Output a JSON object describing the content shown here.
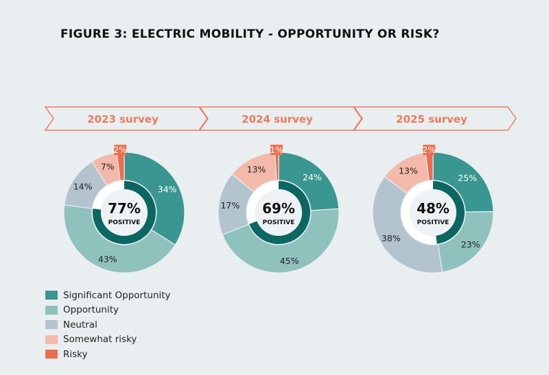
{
  "title": "FIGURE 3: ELECTRIC MOBILITY - OPPORTUNITY OR RISK?",
  "chart_data": {
    "type": "pie",
    "title": "FIGURE 3: ELECTRIC MOBILITY - OPPORTUNITY OR RISK?",
    "categories": [
      "Significant Opportunity",
      "Opportunity",
      "Neutral",
      "Somewhat risky",
      "Risky"
    ],
    "colors": [
      "#3a9690",
      "#8fc1bd",
      "#b3c4cf",
      "#f3b9aa",
      "#ee6d4c"
    ],
    "positive_ring_color": "#0c6661",
    "banner_color": "#ee7a5e",
    "legend_position": "bottom-left",
    "charts": [
      {
        "label": "2023 survey",
        "values": [
          34,
          43,
          14,
          7,
          2
        ],
        "positive": "77%",
        "positive_value": 77,
        "positive_label": "POSITIVE"
      },
      {
        "label": "2024 survey",
        "values": [
          24,
          45,
          17,
          13,
          1
        ],
        "positive": "69%",
        "positive_value": 69,
        "positive_label": "POSITIVE"
      },
      {
        "label": "2025 survey",
        "values": [
          25,
          23,
          38,
          13,
          2
        ],
        "positive": "48%",
        "positive_value": 48,
        "positive_label": "POSITIVE"
      }
    ]
  }
}
